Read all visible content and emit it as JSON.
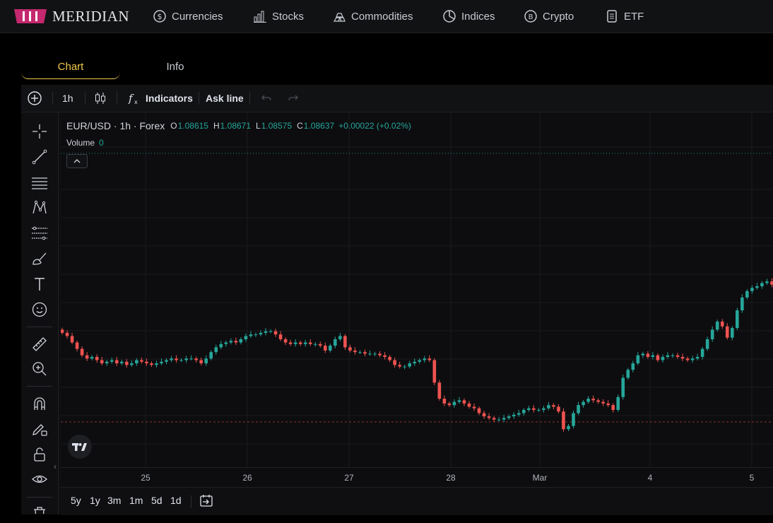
{
  "brand": {
    "name": "MERIDIAN",
    "logo_color": "#c4286e"
  },
  "nav": [
    {
      "label": "Currencies",
      "icon": "currency-icon"
    },
    {
      "label": "Stocks",
      "icon": "bar-chart-icon"
    },
    {
      "label": "Commodities",
      "icon": "gold-bars-icon"
    },
    {
      "label": "Indices",
      "icon": "pie-chart-icon"
    },
    {
      "label": "Crypto",
      "icon": "bitcoin-icon"
    },
    {
      "label": "ETF",
      "icon": "document-icon"
    }
  ],
  "tabs": {
    "chart": "Chart",
    "info": "Info"
  },
  "toolbar": {
    "interval": "1h",
    "indicators": "Indicators",
    "ask_line": "Ask line"
  },
  "legend": {
    "symbol": "EUR/USD · 1h · Forex",
    "o_label": "O",
    "o": "1.08615",
    "h_label": "H",
    "h": "1.08671",
    "l_label": "L",
    "l": "1.08575",
    "c_label": "C",
    "c": "1.08637",
    "change": "+0.00022 (+0.02%)",
    "volume_label": "Volume",
    "volume": "0"
  },
  "time_axis": [
    "25",
    "26",
    "27",
    "28",
    "Mar",
    "4",
    "5"
  ],
  "ranges": [
    "5y",
    "1y",
    "3m",
    "1m",
    "5d",
    "1d"
  ],
  "colors": {
    "up": "#26a69a",
    "down": "#ef5350",
    "accent": "#f0c94a"
  },
  "chart_data": {
    "type": "candlestick",
    "symbol": "EUR/USD",
    "interval": "1h",
    "x_labels": [
      "25",
      "26",
      "27",
      "28",
      "Mar",
      "4",
      "5"
    ],
    "closes": [
      1.082,
      1.0818,
      1.0814,
      1.081,
      1.0806,
      1.0804,
      1.0805,
      1.0803,
      1.0801,
      1.0802,
      1.0803,
      1.0801,
      1.0802,
      1.08,
      1.0801,
      1.0803,
      1.0802,
      1.0801,
      1.08,
      1.0801,
      1.0802,
      1.0803,
      1.0804,
      1.0803,
      1.0803,
      1.0804,
      1.0804,
      1.0803,
      1.0801,
      1.0804,
      1.0808,
      1.0811,
      1.0813,
      1.0814,
      1.0815,
      1.0814,
      1.0816,
      1.0818,
      1.0819,
      1.0819,
      1.082,
      1.0821,
      1.0821,
      1.0819,
      1.0816,
      1.0814,
      1.0813,
      1.0814,
      1.0813,
      1.0814,
      1.0813,
      1.0813,
      1.0812,
      1.0809,
      1.0812,
      1.0816,
      1.0818,
      1.0811,
      1.0809,
      1.0808,
      1.0808,
      1.0807,
      1.0807,
      1.0807,
      1.0806,
      1.0805,
      1.0803,
      1.08,
      1.0799,
      1.0799,
      1.0801,
      1.0802,
      1.0803,
      1.0804,
      1.0803,
      1.0789,
      1.0779,
      1.0776,
      1.0775,
      1.0777,
      1.0778,
      1.0776,
      1.0774,
      1.0773,
      1.077,
      1.0768,
      1.0767,
      1.0766,
      1.0766,
      1.0767,
      1.0768,
      1.0769,
      1.077,
      1.0772,
      1.0773,
      1.0772,
      1.0772,
      1.0773,
      1.0775,
      1.0774,
      1.0771,
      1.076,
      1.0762,
      1.077,
      1.0775,
      1.0777,
      1.0779,
      1.0778,
      1.0777,
      1.0776,
      1.0775,
      1.0772,
      1.078,
      1.0792,
      1.0797,
      1.0801,
      1.0806,
      1.0807,
      1.0805,
      1.0806,
      1.0803,
      1.0805,
      1.0806,
      1.0806,
      1.0805,
      1.0804,
      1.0803,
      1.0804,
      1.0805,
      1.081,
      1.0816,
      1.0822,
      1.0827,
      1.0824,
      1.0817,
      1.0823,
      1.0834,
      1.0842,
      1.0846,
      1.0848,
      1.0849,
      1.0851,
      1.0852,
      1.085
    ]
  }
}
